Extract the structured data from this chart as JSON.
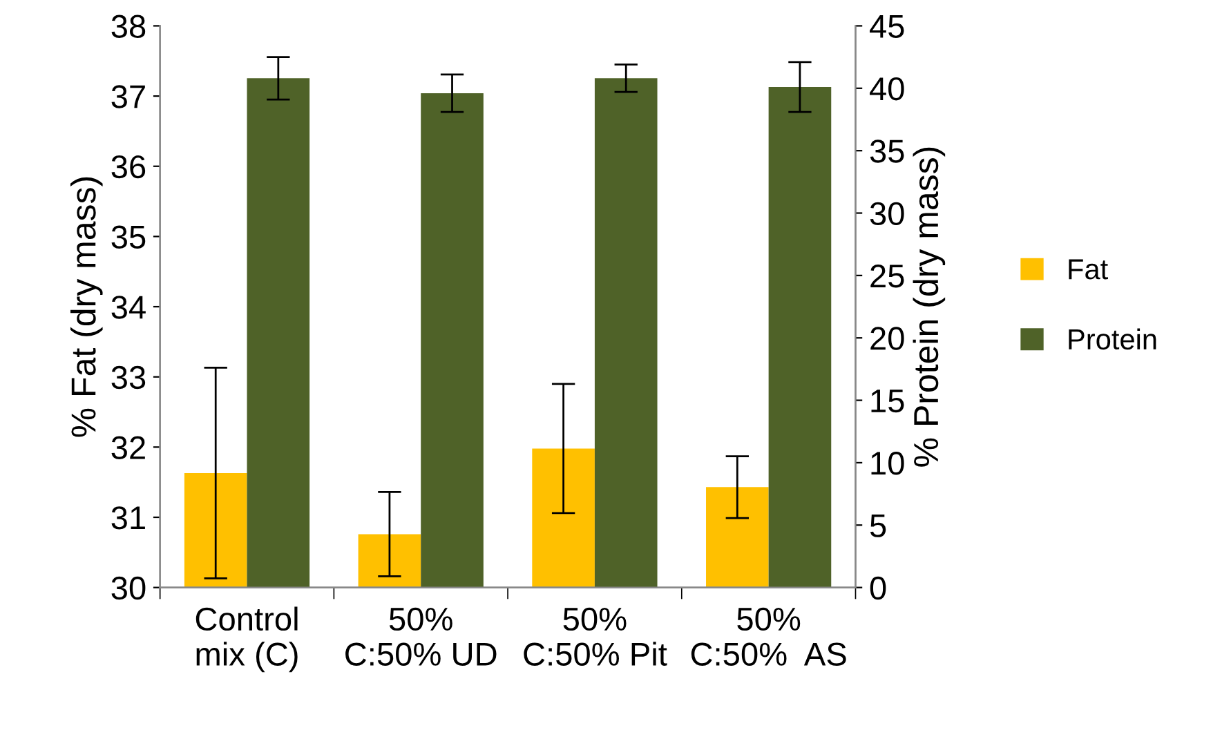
{
  "chart_data": {
    "type": "bar",
    "ylabel": "% Fat (dry mass)",
    "y2label": "% Protein (dry mass)",
    "categories": [
      "Control\nmix (C)",
      "50%\nC:50% UD",
      "50%\nC:50% Pit",
      "50%\nC:50%  AS"
    ],
    "series": [
      {
        "name": "Fat",
        "color": "#ffc000",
        "values": [
          31.63,
          30.76,
          31.98,
          31.43
        ],
        "errors": [
          1.5,
          0.6,
          0.92,
          0.44
        ]
      },
      {
        "name": "Protein",
        "color": "#4f6228",
        "axis": "y2",
        "values": [
          40.8,
          39.6,
          40.8,
          40.1
        ],
        "errors": [
          1.7,
          1.5,
          1.1,
          2.0
        ]
      }
    ],
    "ylim": [
      30,
      38
    ],
    "yticks": [
      30,
      31,
      32,
      33,
      34,
      35,
      36,
      37,
      38
    ],
    "y2lim": [
      0,
      45
    ],
    "y2ticks": [
      0,
      5,
      10,
      15,
      20,
      25,
      30,
      35,
      40,
      45
    ],
    "grid": false,
    "legend": "right"
  }
}
